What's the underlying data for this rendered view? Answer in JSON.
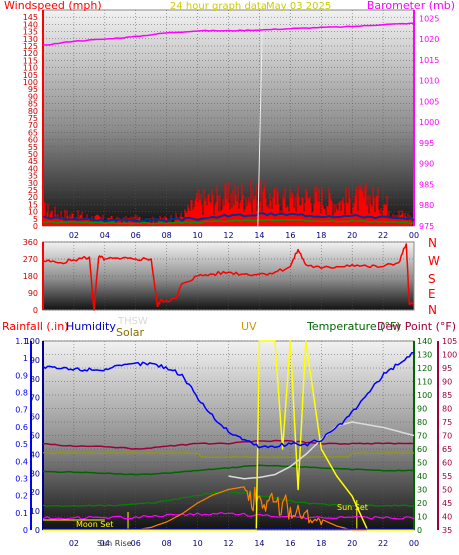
{
  "header": {
    "title": "24 hour graph data",
    "date": "May 03 2025"
  },
  "colors": {
    "wind": "#ff0000",
    "wind_dark": "#003399",
    "wind_green": "#009900",
    "barometer": "#ff00ff",
    "direction": "#ff0000",
    "thsw": "#dcdcdc",
    "humidity": "#0000ff",
    "temperature": "#006600",
    "dew_point": "#a0003a",
    "rainfall": "#0000ff",
    "solar": "#ff8000",
    "uv": "#ffff00",
    "title_yellow": "#cccc00",
    "uv_label": "#cc9900",
    "solar_label": "#8a6d00"
  },
  "chart_data": [
    {
      "type": "line",
      "name": "wind-barometer",
      "title": "24 hour graph data",
      "subtitle": "May 03 2025",
      "ylabel": "Windspeed (mph)",
      "y2label": "Barometer (mb)",
      "x_ticks": [
        "02",
        "04",
        "06",
        "08",
        "10",
        "12",
        "14",
        "16",
        "18",
        "20",
        "22",
        "00"
      ],
      "ylim": [
        0,
        150
      ],
      "y_ticks": [
        "0",
        "5",
        "10",
        "15",
        "20",
        "25",
        "30",
        "35",
        "40",
        "45",
        "50",
        "55",
        "60",
        "65",
        "70",
        "75",
        "80",
        "85",
        "90",
        "95",
        "100",
        "105",
        "110",
        "115",
        "120",
        "125",
        "130",
        "135",
        "140",
        "145"
      ],
      "y2lim": [
        975,
        1027
      ],
      "y2_ticks": [
        "975",
        "980",
        "985",
        "990",
        "995",
        "1000",
        "1005",
        "1010",
        "1015",
        "1020",
        "1025"
      ],
      "series": [
        {
          "key": "barometer",
          "x": [
            0,
            2,
            4,
            6,
            8,
            10,
            12,
            14,
            16,
            18,
            20,
            22,
            24
          ],
          "values": [
            1018.5,
            1019.5,
            1020.0,
            1020.6,
            1021.5,
            1022.0,
            1022.0,
            1022.2,
            1022.5,
            1022.8,
            1023.0,
            1023.5,
            1023.8
          ]
        },
        {
          "key": "wind_gust",
          "x": [
            0,
            1,
            2,
            3,
            4,
            5,
            6,
            7,
            8,
            9,
            10,
            11,
            12,
            13,
            14,
            15,
            16,
            17,
            18,
            19,
            20,
            21,
            22,
            23,
            24
          ],
          "values": [
            14,
            10,
            9,
            7,
            6,
            5,
            6,
            5,
            6,
            8,
            20,
            22,
            24,
            26,
            25,
            22,
            22,
            24,
            23,
            20,
            22,
            24,
            20,
            10,
            8
          ]
        },
        {
          "key": "wind_avg",
          "x": [
            0,
            2,
            4,
            6,
            8,
            10,
            12,
            14,
            16,
            18,
            20,
            22,
            24
          ],
          "values": [
            5,
            4,
            3,
            3,
            3,
            4,
            6,
            7,
            7,
            6,
            6,
            5,
            3
          ]
        }
      ]
    },
    {
      "type": "line",
      "name": "wind-direction",
      "y_ticks": [
        "0",
        "90",
        "180",
        "270",
        "360"
      ],
      "ylim": [
        0,
        360
      ],
      "compass": [
        "N",
        "W",
        "S",
        "E",
        "N"
      ],
      "series": [
        {
          "key": "direction",
          "x": [
            0,
            1,
            2,
            3,
            3.3,
            3.6,
            4,
            5,
            6,
            7,
            7.4,
            7.6,
            8,
            8.6,
            9,
            10,
            11,
            12,
            13,
            14,
            15,
            16,
            16.5,
            17,
            18,
            19,
            20,
            21,
            22,
            23,
            23.5,
            23.7,
            24
          ],
          "values": [
            260,
            250,
            265,
            280,
            0,
            280,
            270,
            270,
            270,
            270,
            20,
            50,
            50,
            60,
            140,
            180,
            190,
            200,
            190,
            190,
            200,
            230,
            320,
            240,
            220,
            230,
            240,
            230,
            230,
            250,
            350,
            30,
            30
          ]
        }
      ]
    },
    {
      "type": "line",
      "name": "rain-humidity-temp",
      "ylabel": "Rainfall (.in)",
      "labels": [
        "Humidity",
        "Solar",
        "THSW",
        "UV",
        "Temperature (°F)",
        "Dew Point (°F)"
      ],
      "annotations": [
        "Sun Rise",
        "Sun Set",
        "Moon Set"
      ],
      "x_ticks": [
        "02",
        "04",
        "06",
        "08",
        "10",
        "12",
        "14",
        "16",
        "18",
        "20",
        "22",
        "00"
      ],
      "rain_ticks": [
        "0",
        "0.1",
        "0.2",
        "0.3",
        "0.4",
        "0.5",
        "0.6",
        "0.7",
        "0.8",
        "0.9",
        "1",
        "1.1"
      ],
      "hum_ticks": [
        "0",
        "10",
        "20",
        "30",
        "40",
        "50",
        "60",
        "70",
        "80",
        "90",
        "100"
      ],
      "temp_ticks": [
        "0",
        "10",
        "20",
        "30",
        "40",
        "50",
        "60",
        "70",
        "80",
        "90",
        "100",
        "110",
        "120",
        "130",
        "140"
      ],
      "dew_ticks": [
        "35",
        "40",
        "45",
        "50",
        "55",
        "60",
        "65",
        "70",
        "75",
        "80",
        "85",
        "90",
        "95",
        "100",
        "105"
      ],
      "sun_rise_hour": 5.5,
      "sun_set_hour": 20.3,
      "moon_set_hour": 4.0,
      "series": [
        {
          "key": "humidity",
          "x": [
            0,
            2,
            4,
            6,
            7,
            8,
            9,
            10,
            11,
            12,
            13,
            14,
            15,
            16,
            17,
            18,
            19,
            20,
            21,
            22,
            23,
            24
          ],
          "values": [
            86,
            85,
            85,
            88,
            88,
            86,
            82,
            70,
            60,
            52,
            48,
            44,
            44,
            46,
            45,
            48,
            54,
            62,
            72,
            82,
            88,
            94
          ]
        },
        {
          "key": "temperature",
          "x": [
            0,
            2,
            4,
            6,
            8,
            10,
            12,
            14,
            16,
            18,
            20,
            22,
            24
          ],
          "values": [
            43,
            43,
            42,
            41,
            42,
            44,
            46,
            48,
            47,
            46,
            45,
            44,
            44
          ]
        },
        {
          "key": "dew_point",
          "x": [
            0,
            2,
            4,
            6,
            8,
            10,
            12,
            14,
            16,
            18,
            20,
            22,
            24
          ],
          "values": [
            67,
            66,
            66,
            65,
            66,
            67,
            67,
            68,
            68,
            67,
            67,
            67,
            67
          ]
        },
        {
          "key": "thsw",
          "x": [
            12,
            13,
            14,
            15,
            16,
            17,
            18,
            19,
            20,
            21,
            22,
            23,
            24
          ],
          "values": [
            40,
            38,
            39,
            41,
            47,
            56,
            67,
            77,
            80,
            78,
            76,
            73,
            70
          ]
        },
        {
          "key": "uv",
          "x": [
            0,
            4,
            5,
            5.5,
            8,
            10,
            12,
            13,
            13.8,
            14,
            15,
            15.5,
            16,
            16.5,
            17,
            18,
            19,
            20,
            21,
            24
          ],
          "values": [
            0,
            0,
            0,
            0,
            0,
            0,
            0,
            0,
            0,
            140,
            140,
            60,
            140,
            30,
            140,
            60,
            40,
            25,
            0,
            0
          ]
        },
        {
          "key": "solar",
          "x": [
            0,
            6,
            7,
            8,
            9,
            10,
            11,
            12,
            13,
            14,
            15,
            16,
            17,
            18,
            19,
            20,
            21,
            24
          ],
          "values": [
            0,
            0,
            2,
            6,
            12,
            20,
            26,
            30,
            32,
            30,
            28,
            22,
            16,
            8,
            3,
            0,
            0,
            0
          ]
        },
        {
          "key": "rainfall",
          "x": [
            0,
            24
          ],
          "values": [
            0,
            0
          ]
        }
      ]
    }
  ]
}
